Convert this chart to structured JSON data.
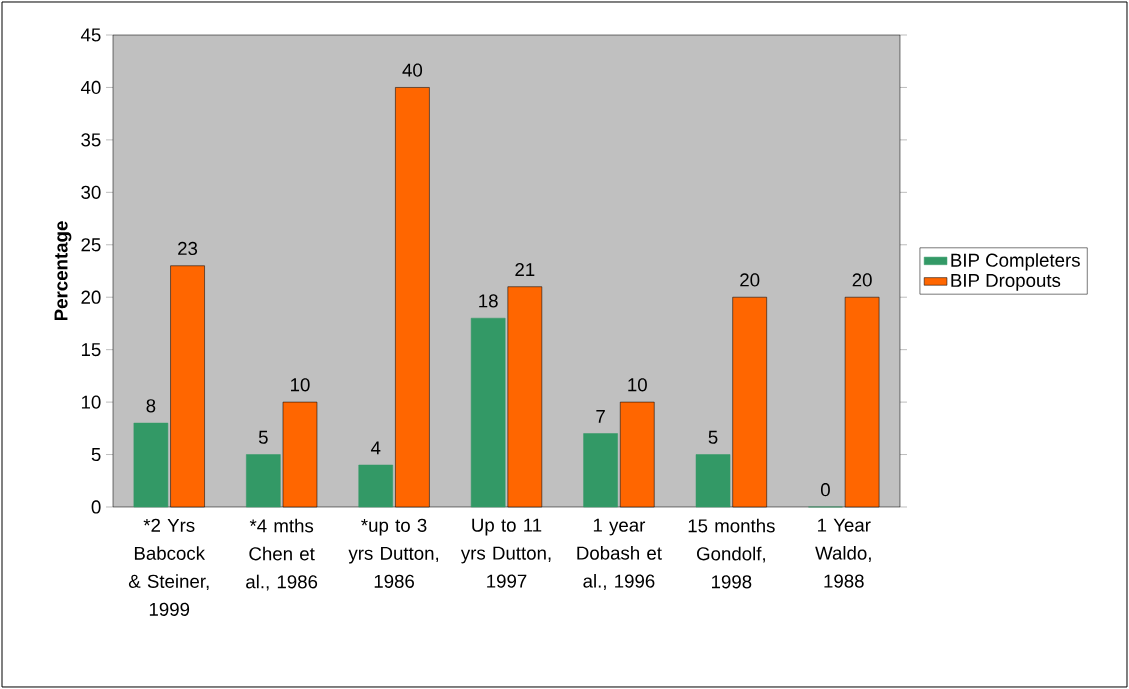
{
  "chart_data": {
    "type": "bar",
    "ylabel": "Percentage",
    "categories": [
      "*2 Yrs Babcock & Steiner, 1999",
      "*4 mths Chen et al., 1986",
      "*up to 3 yrs Dutton, 1986",
      "Up to 11 yrs Dutton, 1997",
      "1 year Dobash et al., 1996",
      "15 months Gondolf, 1998",
      "1 Year Waldo, 1988"
    ],
    "series": [
      {
        "name": "BIP Completers",
        "color": "#339966",
        "values": [
          8,
          5,
          4,
          18,
          7,
          5,
          0
        ]
      },
      {
        "name": "BIP Dropouts",
        "color": "#ff6600",
        "values": [
          23,
          10,
          40,
          21,
          10,
          20,
          20
        ]
      }
    ],
    "ylim": [
      0,
      45
    ],
    "yticks": [
      0,
      5,
      10,
      15,
      20,
      25,
      30,
      35,
      40,
      45
    ],
    "data_labels": true,
    "legend": "right",
    "grid": false
  }
}
